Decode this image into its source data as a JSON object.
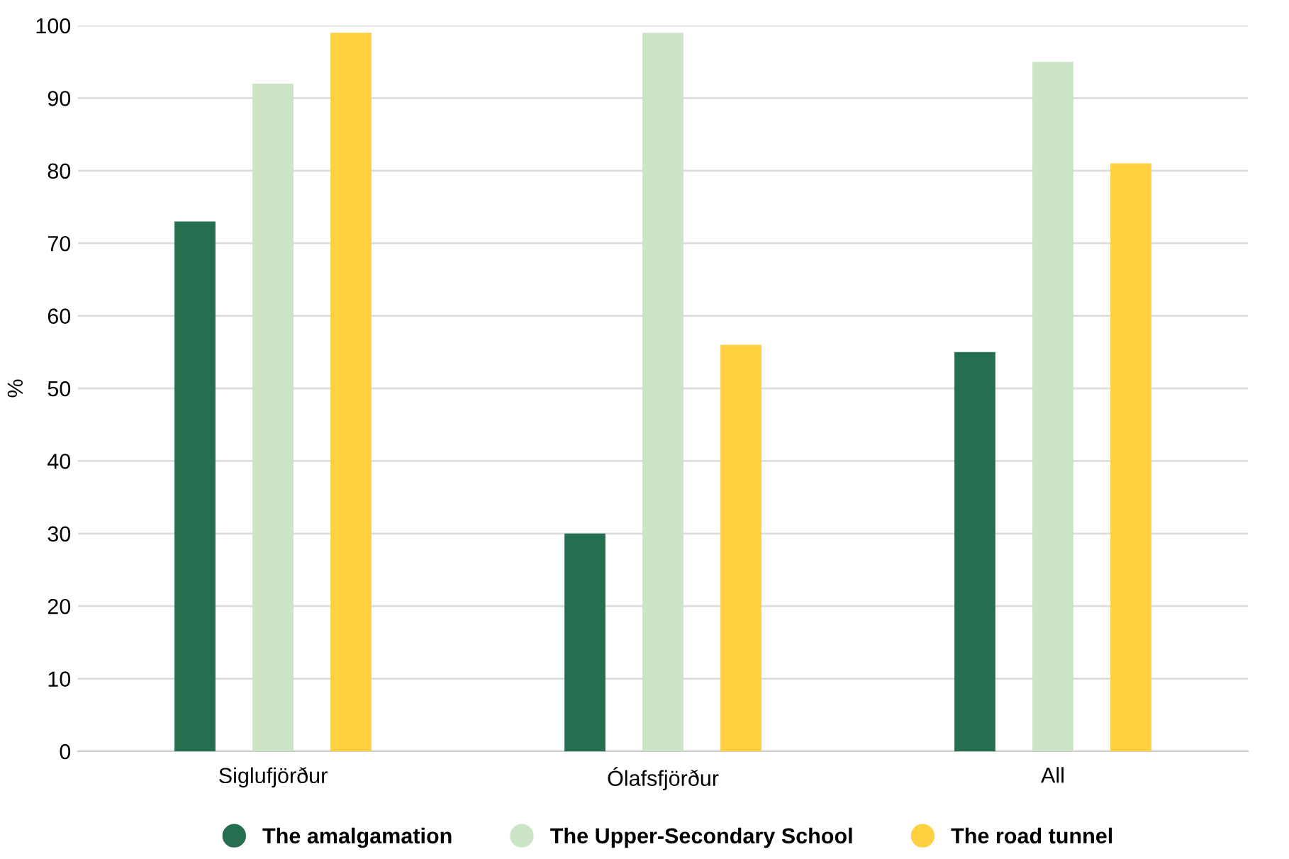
{
  "chart_data": {
    "type": "bar",
    "ylabel": "%",
    "categories": [
      "Siglufjörður",
      "Ólafsfjörður",
      "All"
    ],
    "series": [
      {
        "name": "The amalgamation",
        "color": "#266e50",
        "values": [
          73,
          30,
          55
        ]
      },
      {
        "name": "The Upper-Secondary School",
        "color": "#cce5c6",
        "values": [
          92,
          99,
          95
        ]
      },
      {
        "name": "The road tunnel",
        "color": "#ffd03f",
        "values": [
          99,
          56,
          81
        ]
      }
    ],
    "ylim": [
      0,
      100
    ],
    "yticks": [
      0,
      10,
      20,
      30,
      40,
      50,
      60,
      70,
      80,
      90,
      100
    ],
    "grid": "y",
    "legend": "bottom"
  }
}
